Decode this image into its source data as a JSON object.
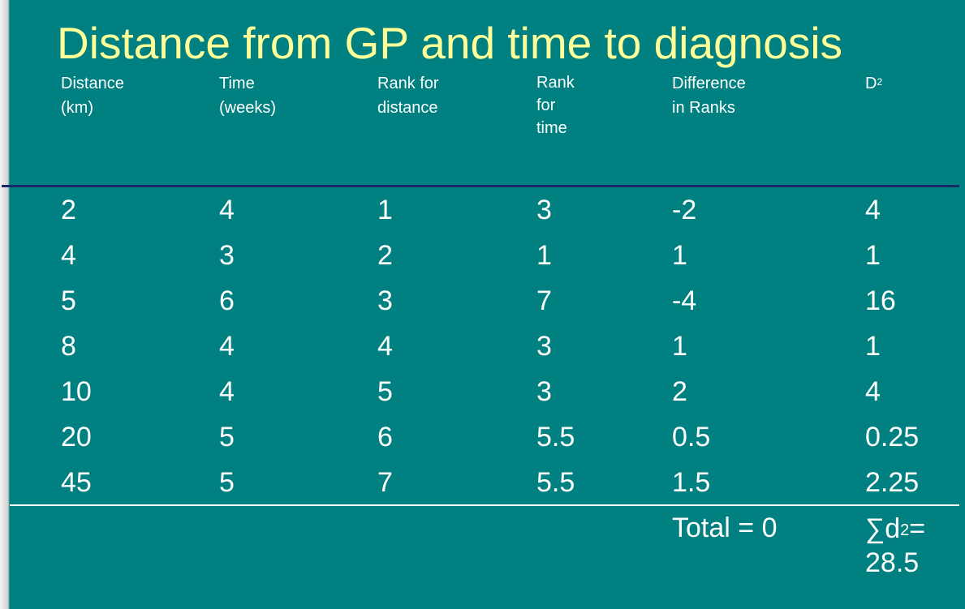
{
  "title": "Distance from GP and time to diagnosis",
  "headers": [
    {
      "lines": [
        "Distance",
        "(km)"
      ]
    },
    {
      "lines": [
        "Time",
        "(weeks)"
      ]
    },
    {
      "lines": [
        "Rank for",
        "distance"
      ]
    },
    {
      "lines": [
        "Rank",
        "for",
        "time"
      ]
    },
    {
      "lines": [
        "Difference",
        "in Ranks"
      ]
    },
    {
      "lines": [
        "D"
      ],
      "sup": "2"
    }
  ],
  "rows": [
    [
      "2",
      "4",
      "1",
      "3",
      "-2",
      "4"
    ],
    [
      "4",
      "3",
      "2",
      "1",
      "1",
      "1"
    ],
    [
      "5",
      "6",
      "3",
      "7",
      "-4",
      "16"
    ],
    [
      "8",
      "4",
      "4",
      "3",
      "1",
      "1"
    ],
    [
      "10",
      "4",
      "5",
      "3",
      "2",
      "4"
    ],
    [
      "20",
      "5",
      "6",
      "5.5",
      "0.5",
      "0.25"
    ],
    [
      "45",
      "5",
      "7",
      "5.5",
      "1.5",
      "2.25"
    ]
  ],
  "footer": {
    "total": "Total = 0",
    "sum_prefix": "∑d",
    "sum_sup": "2",
    "sum_eq": "=",
    "sum_value": "28.5"
  },
  "colors": {
    "background": "#008080",
    "title": "#ffff99",
    "text": "#ffffff",
    "header_rule": "#1a2a66"
  }
}
